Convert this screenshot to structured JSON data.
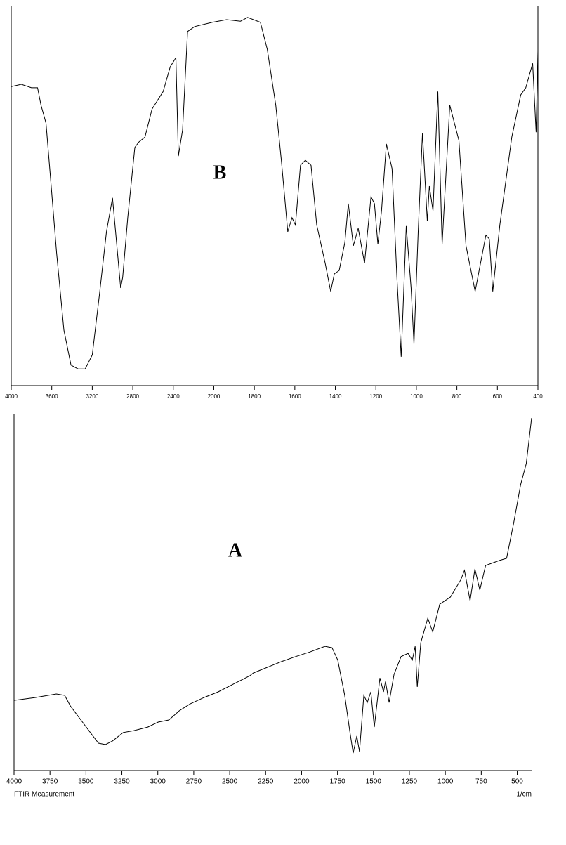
{
  "chart_data": [
    {
      "type": "line",
      "annotation": "B",
      "x": [
        4000,
        3900,
        3800,
        3740,
        3706,
        3657,
        3608,
        3552,
        3480,
        3410,
        3340,
        3270,
        3200,
        3130,
        3060,
        3000,
        2970,
        2920,
        2900,
        2850,
        2780,
        2740,
        2680,
        2610,
        2500,
        2430,
        2374,
        2350,
        2308,
        2259,
        2189,
        2014,
        1937,
        1868,
        1833,
        1770,
        1736,
        1694,
        1666,
        1635,
        1614,
        1597,
        1572,
        1548,
        1520,
        1492,
        1450,
        1423,
        1405,
        1381,
        1353,
        1336,
        1311,
        1287,
        1256,
        1224,
        1207,
        1190,
        1172,
        1148,
        1120,
        1096,
        1075,
        1050,
        1026,
        1012,
        991,
        970,
        946,
        936,
        918,
        894,
        873,
        835,
        790,
        755,
        710,
        657,
        640,
        623,
        588,
        529,
        485,
        460,
        426,
        409,
        400
      ],
      "series": [
        {
          "color": "#000000",
          "values": [
            78.7,
            79.3,
            78.4,
            78.4,
            73.8,
            69.1,
            53.4,
            34.9,
            14.6,
            5.4,
            4.4,
            4.4,
            8.1,
            23.8,
            40.5,
            49.4,
            40.5,
            25.7,
            28.5,
            44.2,
            62.7,
            64.1,
            65.4,
            72.8,
            77.4,
            83.9,
            86.3,
            60.4,
            67.3,
            93.2,
            94.5,
            95.6,
            96.3,
            95.9,
            96.9,
            95.6,
            88.5,
            73.8,
            59.0,
            40.5,
            44.2,
            42.3,
            58.0,
            59.3,
            58.0,
            42.3,
            32.2,
            24.8,
            29.4,
            30.3,
            37.7,
            47.9,
            36.8,
            41.4,
            32.2,
            49.7,
            47.9,
            37.2,
            46.0,
            63.6,
            57.1,
            28.5,
            7.6,
            42.0,
            25.7,
            10.9,
            40.5,
            66.4,
            43.3,
            52.5,
            46.0,
            77.4,
            37.2,
            73.8,
            64.5,
            36.8,
            24.8,
            39.6,
            38.6,
            24.8,
            42.3,
            65.4,
            76.5,
            78.4,
            84.8,
            66.7,
            88.0
          ]
        }
      ],
      "xlim": [
        4000,
        400
      ],
      "xticks": [
        4000,
        3600,
        3200,
        2800,
        2400,
        2000,
        1800,
        1600,
        1400,
        1200,
        1000,
        800,
        600,
        400
      ],
      "ylim": [
        0,
        100
      ]
    },
    {
      "type": "line",
      "annotation": "A",
      "note": "FTIR Measurement",
      "xlabel": "1/cm",
      "x": [
        4000,
        3853,
        3706,
        3648,
        3608,
        3535,
        3462,
        3413,
        3364,
        3315,
        3241,
        3168,
        3070,
        2997,
        2923,
        2850,
        2776,
        2679,
        2580,
        2483,
        2360,
        2336,
        2238,
        2140,
        2042,
        1942,
        1837,
        1788,
        1748,
        1700,
        1665,
        1641,
        1616,
        1597,
        1567,
        1543,
        1518,
        1494,
        1455,
        1430,
        1416,
        1391,
        1357,
        1308,
        1259,
        1230,
        1210,
        1195,
        1171,
        1122,
        1088,
        1039,
        965,
        892,
        867,
        828,
        794,
        760,
        720,
        623,
        574,
        525,
        476,
        437,
        400
      ],
      "series": [
        {
          "color": "#000000",
          "values": [
            19.7,
            20.5,
            21.5,
            21.1,
            18.1,
            14.2,
            10.3,
            7.7,
            7.3,
            8.3,
            10.7,
            11.2,
            12.2,
            13.6,
            14.2,
            16.8,
            18.7,
            20.5,
            22.1,
            24.1,
            26.6,
            27.4,
            29.0,
            30.6,
            32.0,
            33.3,
            34.9,
            34.5,
            31.0,
            21.1,
            11.2,
            4.9,
            9.7,
            5.3,
            21.1,
            19.1,
            22.1,
            12.2,
            26.0,
            22.1,
            25.0,
            19.1,
            27.0,
            32.0,
            32.9,
            31.0,
            34.9,
            23.5,
            35.9,
            42.8,
            38.9,
            46.7,
            48.7,
            53.6,
            56.2,
            47.7,
            56.6,
            50.7,
            57.6,
            59.0,
            59.6,
            69.4,
            80.3,
            86.2,
            99.0
          ]
        }
      ],
      "xlim": [
        4000,
        400
      ],
      "xticks": [
        4000,
        3750,
        3500,
        3250,
        3000,
        2750,
        2500,
        2250,
        2000,
        1750,
        1500,
        1250,
        1000,
        750,
        500
      ],
      "ylim": [
        0,
        100
      ]
    }
  ]
}
